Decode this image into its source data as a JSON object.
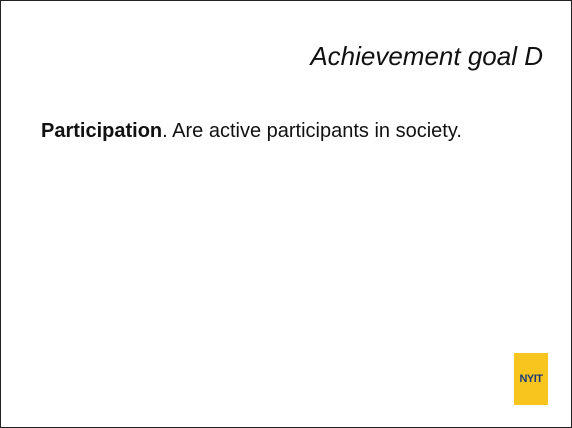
{
  "slide": {
    "title": "Achievement goal D",
    "body": {
      "term": "Participation",
      "text": ". Are active participants in society."
    },
    "logo": "NYIT"
  }
}
